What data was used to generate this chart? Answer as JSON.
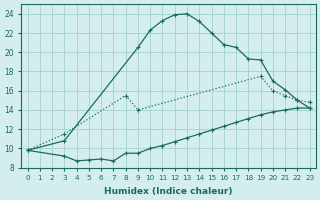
{
  "xlabel": "Humidex (Indice chaleur)",
  "bg_color": "#d4eeee",
  "line_color": "#1a6b5a",
  "grid_color": "#aad4d4",
  "xlim": [
    -0.5,
    23.5
  ],
  "ylim": [
    8,
    25
  ],
  "xticks": [
    0,
    1,
    2,
    3,
    4,
    5,
    6,
    7,
    8,
    9,
    10,
    11,
    12,
    13,
    14,
    15,
    16,
    17,
    18,
    19,
    20,
    21,
    22,
    23
  ],
  "yticks": [
    8,
    10,
    12,
    14,
    16,
    18,
    20,
    22,
    24
  ],
  "curve_top": {
    "x": [
      0,
      3,
      9,
      10,
      11,
      12,
      13,
      14,
      15,
      16,
      17,
      18,
      19,
      20,
      21,
      22,
      23
    ],
    "y": [
      9.8,
      10.8,
      20.5,
      22.3,
      23.3,
      23.9,
      24.0,
      23.2,
      22.0,
      20.8,
      20.5,
      19.3,
      19.2,
      17.0,
      16.1,
      15.0,
      14.2
    ]
  },
  "curve_mid": {
    "x": [
      0,
      3,
      8,
      9,
      19,
      20,
      21,
      22,
      23
    ],
    "y": [
      9.8,
      11.5,
      15.5,
      14.0,
      17.5,
      16.0,
      15.5,
      15.0,
      14.8
    ]
  },
  "curve_bot": {
    "x": [
      0,
      3,
      4,
      5,
      6,
      7,
      8,
      9,
      10,
      11,
      12,
      13,
      14,
      15,
      16,
      17,
      18,
      19,
      20,
      21,
      22,
      23
    ],
    "y": [
      9.8,
      9.2,
      8.7,
      8.8,
      8.9,
      8.7,
      9.5,
      9.5,
      10.0,
      10.3,
      10.7,
      11.1,
      11.5,
      11.9,
      12.3,
      12.7,
      13.1,
      13.5,
      13.8,
      14.0,
      14.2,
      14.2
    ]
  }
}
